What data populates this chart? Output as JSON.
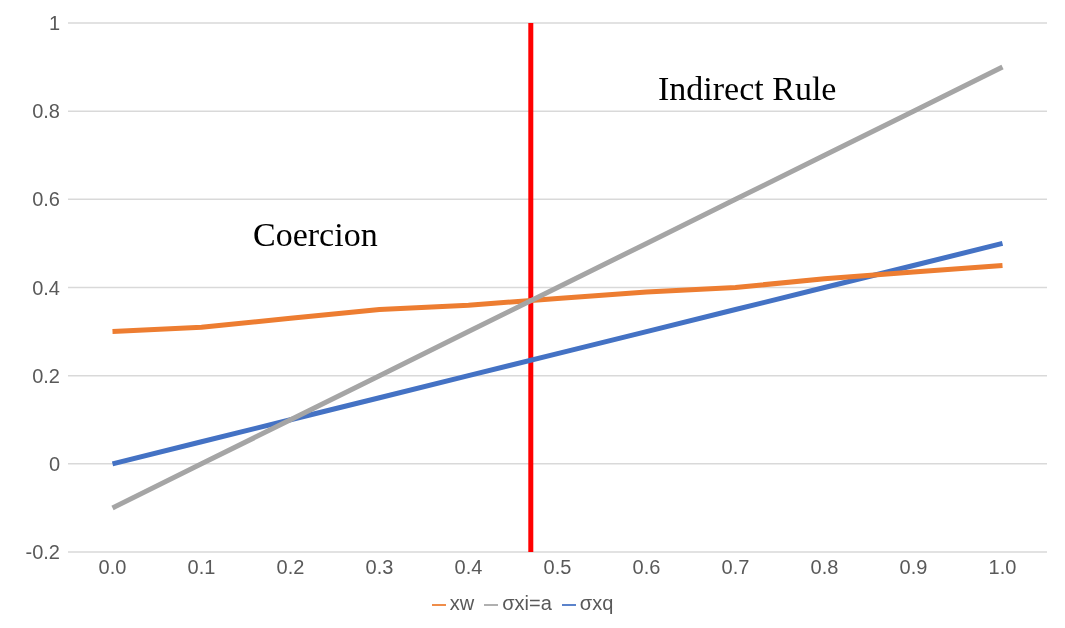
{
  "chart_data": {
    "type": "line",
    "x": [
      0,
      0.1,
      0.2,
      0.3,
      0.4,
      0.5,
      0.6,
      0.7,
      0.8,
      0.9,
      1.0
    ],
    "series": [
      {
        "name": "σxq",
        "color": "#4472c4",
        "values": [
          0,
          0.05,
          0.1,
          0.15,
          0.2,
          0.25,
          0.3,
          0.35,
          0.4,
          0.45,
          0.5
        ]
      },
      {
        "name": "xw",
        "color": "#ed7d31",
        "values": [
          0.3,
          0.31,
          0.33,
          0.35,
          0.36,
          0.375,
          0.39,
          0.4,
          0.42,
          0.435,
          0.45
        ]
      },
      {
        "name": "σxi=a",
        "color": "#a5a5a5",
        "values": [
          -0.1,
          0,
          0.1,
          0.2,
          0.3,
          0.4,
          0.5,
          0.6,
          0.7,
          0.8,
          0.9
        ]
      }
    ],
    "xlim": [
      -0.05,
      1.05
    ],
    "xticks": [
      {
        "value": 0,
        "label": "0.0"
      },
      {
        "value": 0.1,
        "label": "0.1"
      },
      {
        "value": 0.2,
        "label": "0.2"
      },
      {
        "value": 0.3,
        "label": "0.3"
      },
      {
        "value": 0.4,
        "label": "0.4"
      },
      {
        "value": 0.5,
        "label": "0.5"
      },
      {
        "value": 0.6,
        "label": "0.6"
      },
      {
        "value": 0.7,
        "label": "0.7"
      },
      {
        "value": 0.8,
        "label": "0.8"
      },
      {
        "value": 0.9,
        "label": "0.9"
      },
      {
        "value": 1.0,
        "label": "1.0"
      }
    ],
    "ylim": [
      -0.2,
      1
    ],
    "yticks": [
      -0.2,
      0,
      0.2,
      0.4,
      0.6,
      0.8,
      1
    ],
    "ref_lines": [
      {
        "axis": "x",
        "value": 0.47,
        "color": "#ff0000"
      }
    ],
    "annotations": [
      "Coercion",
      "Indirect Rule"
    ],
    "grid": "y",
    "legend": "bottom",
    "marker": "none",
    "line_style": "solid"
  }
}
